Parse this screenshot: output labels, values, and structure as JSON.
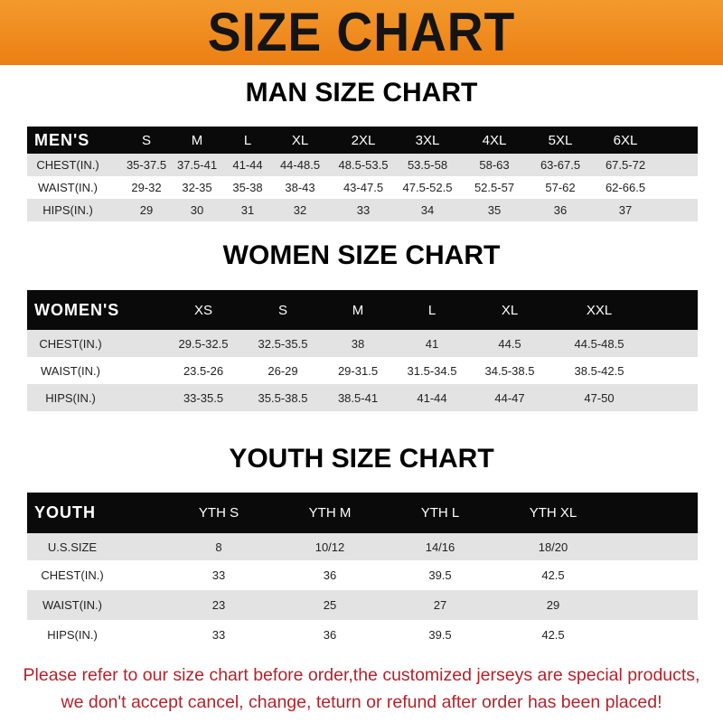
{
  "header": {
    "title": "SIZE CHART",
    "band_color": "#ee8a1e"
  },
  "men": {
    "title": "MAN SIZE CHART",
    "columns": [
      "MEN'S",
      "S",
      "M",
      "L",
      "XL",
      "2XL",
      "3XL",
      "4XL",
      "5XL",
      "6XL"
    ],
    "rows": [
      [
        "CHEST(IN.)",
        "35-37.5",
        "37.5-41",
        "41-44",
        "44-48.5",
        "48.5-53.5",
        "53.5-58",
        "58-63",
        "63-67.5",
        "67.5-72"
      ],
      [
        "WAIST(IN.)",
        "29-32",
        "32-35",
        "35-38",
        "38-43",
        "43-47.5",
        "47.5-52.5",
        "52.5-57",
        "57-62",
        "62-66.5"
      ],
      [
        "HIPS(IN.)",
        "29",
        "30",
        "31",
        "32",
        "33",
        "34",
        "35",
        "36",
        "37"
      ]
    ]
  },
  "women": {
    "title": "WOMEN SIZE CHART",
    "columns": [
      "WOMEN'S",
      "XS",
      "S",
      "M",
      "L",
      "XL",
      "XXL"
    ],
    "rows": [
      [
        "CHEST(IN.)",
        "29.5-32.5",
        "32.5-35.5",
        "38",
        "41",
        "44.5",
        "44.5-48.5"
      ],
      [
        "WAIST(IN.)",
        "23.5-26",
        "26-29",
        "29-31.5",
        "31.5-34.5",
        "34.5-38.5",
        "38.5-42.5"
      ],
      [
        "HIPS(IN.)",
        "33-35.5",
        "35.5-38.5",
        "38.5-41",
        "41-44",
        "44-47",
        "47-50"
      ]
    ]
  },
  "youth": {
    "title": "YOUTH SIZE CHART",
    "columns": [
      "YOUTH",
      "YTH S",
      "YTH M",
      "YTH L",
      "YTH XL"
    ],
    "rows": [
      [
        "U.S.SIZE",
        "8",
        "10/12",
        "14/16",
        "18/20"
      ],
      [
        "CHEST(IN.)",
        "33",
        "36",
        "39.5",
        "42.5"
      ],
      [
        "WAIST(IN.)",
        "23",
        "25",
        "27",
        "29"
      ],
      [
        "HIPS(IN.)",
        "33",
        "36",
        "39.5",
        "42.5"
      ]
    ]
  },
  "notice": {
    "line1": "Please refer to our size chart before order,the customized jerseys are special products,",
    "line2": "we don't accept cancel, change, teturn or refund after order has been placed!",
    "color": "#b4232b"
  }
}
